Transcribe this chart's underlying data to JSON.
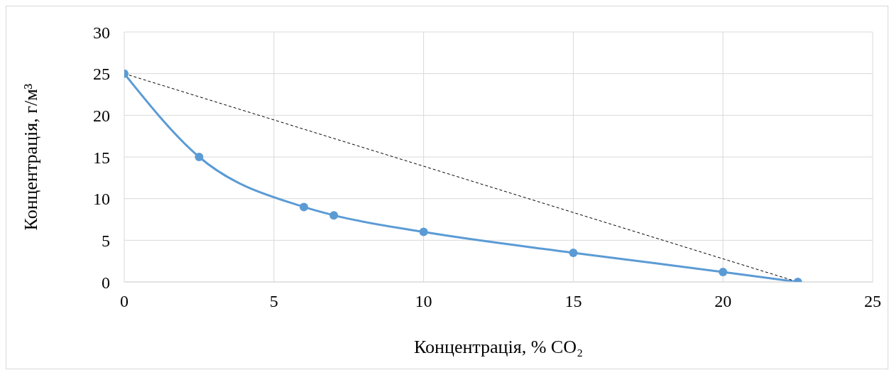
{
  "chart_data": {
    "type": "line",
    "xlabel": "Концентрація, % CO₂",
    "ylabel": "Концентрація, г/м³",
    "series": [
      {
        "color": "#5b9bd5",
        "x": [
          0,
          2.5,
          6,
          7,
          10,
          15,
          20,
          22.5
        ],
        "values": [
          25,
          15,
          9,
          8,
          6,
          3.5,
          1.2,
          0
        ],
        "marker": "circle",
        "line_style": "solid"
      },
      {
        "color": "#000000",
        "x": [
          0,
          22.5
        ],
        "values": [
          25,
          0
        ],
        "marker": "none",
        "line_style": "dashed"
      }
    ],
    "xlim": [
      0,
      25
    ],
    "xticks": [
      0,
      5,
      10,
      15,
      20,
      25
    ],
    "ylim": [
      0,
      30
    ],
    "yticks": [
      0,
      5,
      10,
      15,
      20,
      25,
      30
    ],
    "grid": true
  }
}
